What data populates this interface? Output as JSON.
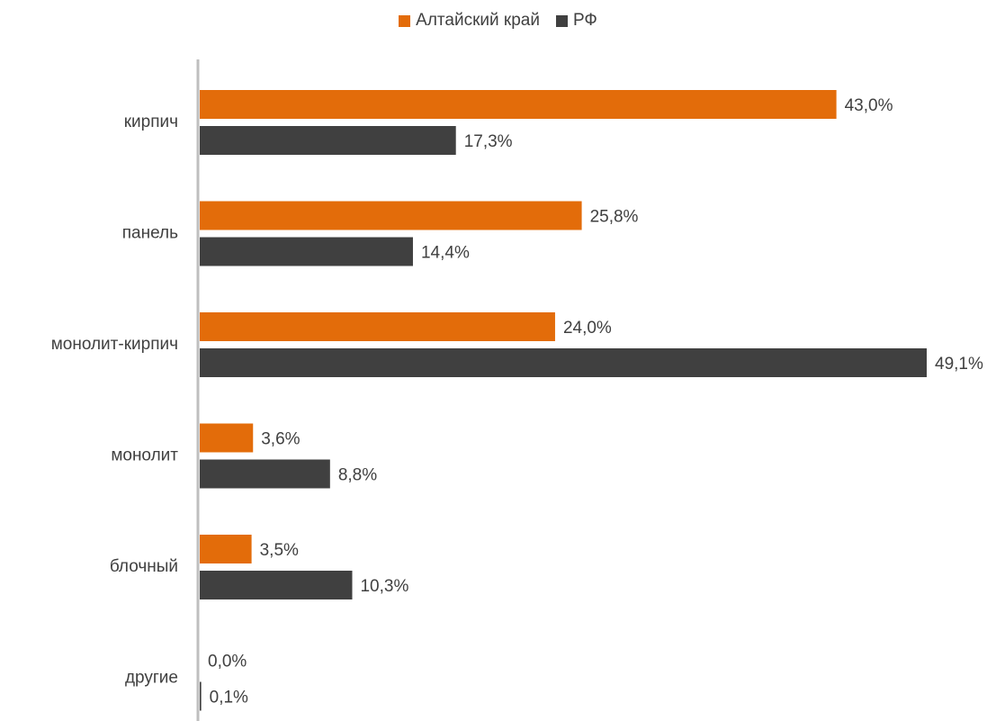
{
  "chart_data": {
    "type": "bar",
    "orientation": "horizontal",
    "categories": [
      "кирпич",
      "панель",
      "монолит-кирпич",
      "монолит",
      "блочный",
      "другие"
    ],
    "series": [
      {
        "name": "Алтайский край",
        "values": [
          43.0,
          25.8,
          24.0,
          3.6,
          3.5,
          0.0
        ],
        "labels": [
          "43,0%",
          "25,8%",
          "24,0%",
          "3,6%",
          "3,5%",
          "0,0%"
        ],
        "color": "#E36C0A"
      },
      {
        "name": "РФ",
        "values": [
          17.3,
          14.4,
          49.1,
          8.8,
          10.3,
          0.1
        ],
        "labels": [
          "17,3%",
          "14,4%",
          "49,1%",
          "8,8%",
          "10,3%",
          "0,1%"
        ],
        "color": "#404040"
      }
    ],
    "xlim": [
      0,
      49.1
    ],
    "grid": false,
    "legend_position": "top"
  }
}
